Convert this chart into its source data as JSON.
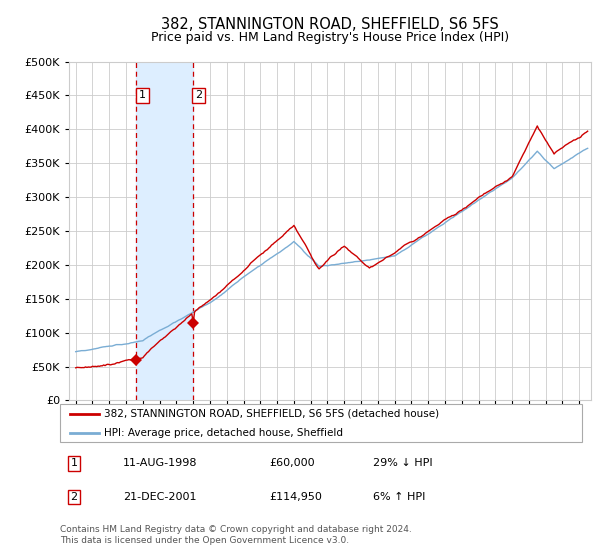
{
  "title": "382, STANNINGTON ROAD, SHEFFIELD, S6 5FS",
  "subtitle": "Price paid vs. HM Land Registry's House Price Index (HPI)",
  "legend_line1": "382, STANNINGTON ROAD, SHEFFIELD, S6 5FS (detached house)",
  "legend_line2": "HPI: Average price, detached house, Sheffield",
  "footer": "Contains HM Land Registry data © Crown copyright and database right 2024.\nThis data is licensed under the Open Government Licence v3.0.",
  "sale1_date": "11-AUG-1998",
  "sale1_price": 60000,
  "sale1_hpi": "29% ↓ HPI",
  "sale2_date": "21-DEC-2001",
  "sale2_price": 114950,
  "sale2_hpi": "6% ↑ HPI",
  "sale1_year": 1998.61,
  "sale2_year": 2001.97,
  "ylim": [
    0,
    500000
  ],
  "xlim_start": 1994.6,
  "xlim_end": 2025.7,
  "red_color": "#cc0000",
  "blue_color": "#7aadd4",
  "shading_color": "#ddeeff",
  "grid_color": "#cccccc",
  "background_color": "#ffffff"
}
